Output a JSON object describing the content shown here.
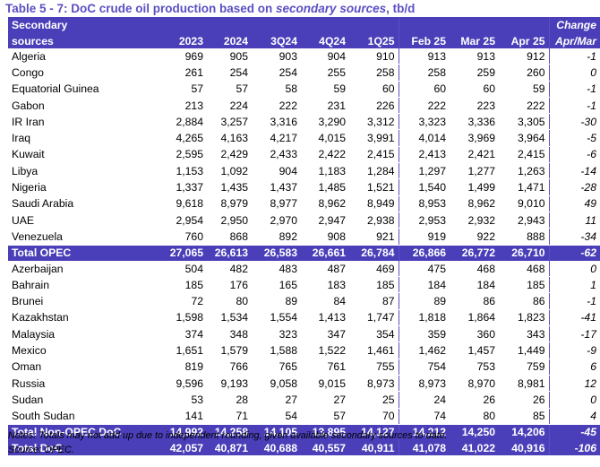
{
  "title": {
    "prefix": "Table 5 - 7: DoC crude oil production based on ",
    "italic": "secondary sources",
    "suffix": ", tb/d"
  },
  "header": {
    "first_col_line1": "Secondary",
    "first_col_line2": "sources",
    "change_line1": "Change",
    "change_line2": "Apr/Mar",
    "columns": [
      "2023",
      "2024",
      "3Q24",
      "4Q24",
      "1Q25",
      "Feb 25",
      "Mar 25",
      "Apr 25"
    ]
  },
  "opec_rows": [
    {
      "name": "Algeria",
      "values": [
        "969",
        "905",
        "903",
        "904",
        "910",
        "913",
        "913",
        "912"
      ],
      "change": "-1"
    },
    {
      "name": "Congo",
      "values": [
        "261",
        "254",
        "254",
        "255",
        "258",
        "258",
        "259",
        "260"
      ],
      "change": "0"
    },
    {
      "name": "Equatorial Guinea",
      "values": [
        "57",
        "57",
        "58",
        "59",
        "60",
        "60",
        "60",
        "59"
      ],
      "change": "-1"
    },
    {
      "name": "Gabon",
      "values": [
        "213",
        "224",
        "222",
        "231",
        "226",
        "222",
        "223",
        "222"
      ],
      "change": "-1"
    },
    {
      "name": "IR Iran",
      "values": [
        "2,884",
        "3,257",
        "3,316",
        "3,290",
        "3,312",
        "3,323",
        "3,336",
        "3,305"
      ],
      "change": "-30"
    },
    {
      "name": "Iraq",
      "values": [
        "4,265",
        "4,163",
        "4,217",
        "4,015",
        "3,991",
        "4,014",
        "3,969",
        "3,964"
      ],
      "change": "-5"
    },
    {
      "name": "Kuwait",
      "values": [
        "2,595",
        "2,429",
        "2,433",
        "2,422",
        "2,415",
        "2,413",
        "2,421",
        "2,415"
      ],
      "change": "-6"
    },
    {
      "name": "Libya",
      "values": [
        "1,153",
        "1,092",
        "904",
        "1,183",
        "1,284",
        "1,297",
        "1,277",
        "1,263"
      ],
      "change": "-14"
    },
    {
      "name": "Nigeria",
      "values": [
        "1,337",
        "1,435",
        "1,437",
        "1,485",
        "1,521",
        "1,540",
        "1,499",
        "1,471"
      ],
      "change": "-28"
    },
    {
      "name": "Saudi Arabia",
      "values": [
        "9,618",
        "8,979",
        "8,977",
        "8,962",
        "8,949",
        "8,953",
        "8,962",
        "9,010"
      ],
      "change": "49"
    },
    {
      "name": "UAE",
      "values": [
        "2,954",
        "2,950",
        "2,970",
        "2,947",
        "2,938",
        "2,953",
        "2,932",
        "2,943"
      ],
      "change": "11"
    },
    {
      "name": "Venezuela",
      "values": [
        "760",
        "868",
        "892",
        "908",
        "921",
        "919",
        "922",
        "888"
      ],
      "change": "-34"
    }
  ],
  "total_opec": {
    "name": "Total  OPEC",
    "values": [
      "27,065",
      "26,613",
      "26,583",
      "26,661",
      "26,784",
      "26,866",
      "26,772",
      "26,710"
    ],
    "change": "-62"
  },
  "non_opec_rows": [
    {
      "name": "Azerbaijan",
      "values": [
        "504",
        "482",
        "483",
        "487",
        "469",
        "475",
        "468",
        "468"
      ],
      "change": "0"
    },
    {
      "name": "Bahrain",
      "values": [
        "185",
        "176",
        "165",
        "183",
        "185",
        "184",
        "184",
        "185"
      ],
      "change": "1"
    },
    {
      "name": "Brunei",
      "values": [
        "72",
        "80",
        "89",
        "84",
        "87",
        "89",
        "86",
        "86"
      ],
      "change": "-1"
    },
    {
      "name": "Kazakhstan",
      "values": [
        "1,598",
        "1,534",
        "1,554",
        "1,413",
        "1,747",
        "1,818",
        "1,864",
        "1,823"
      ],
      "change": "-41"
    },
    {
      "name": "Malaysia",
      "values": [
        "374",
        "348",
        "323",
        "347",
        "354",
        "359",
        "360",
        "343"
      ],
      "change": "-17"
    },
    {
      "name": "Mexico",
      "values": [
        "1,651",
        "1,579",
        "1,588",
        "1,522",
        "1,461",
        "1,462",
        "1,457",
        "1,449"
      ],
      "change": "-9"
    },
    {
      "name": "Oman",
      "values": [
        "819",
        "766",
        "765",
        "761",
        "755",
        "754",
        "753",
        "759"
      ],
      "change": "6"
    },
    {
      "name": "Russia",
      "values": [
        "9,596",
        "9,193",
        "9,058",
        "9,015",
        "8,973",
        "8,973",
        "8,970",
        "8,981"
      ],
      "change": "12"
    },
    {
      "name": "Sudan",
      "values": [
        "53",
        "28",
        "27",
        "27",
        "25",
        "24",
        "26",
        "26"
      ],
      "change": "0"
    },
    {
      "name": "South Sudan",
      "values": [
        "141",
        "71",
        "54",
        "57",
        "70",
        "74",
        "80",
        "85"
      ],
      "change": "4"
    }
  ],
  "total_non_opec": {
    "name": "Total Non-OPEC DoC",
    "values": [
      "14,992",
      "14,258",
      "14,105",
      "13,895",
      "14,127",
      "14,212",
      "14,250",
      "14,206"
    ],
    "change": "-45"
  },
  "total_doc": {
    "name": "Total DoC",
    "values": [
      "42,057",
      "40,871",
      "40,688",
      "40,557",
      "40,911",
      "41,078",
      "41,022",
      "40,916"
    ],
    "change": "-106"
  },
  "notes": {
    "line1": "Notes: Totals may not add up due to independent rounding, given available secondary sources to date.",
    "line2": "Source: OPEC."
  }
}
